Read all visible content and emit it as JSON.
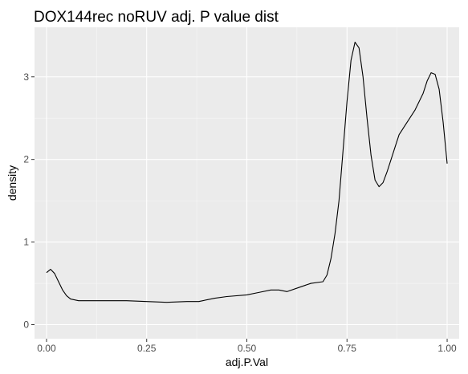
{
  "chart_data": {
    "type": "line",
    "title": "DOX144rec noRUV adj. P value dist",
    "xlabel": "adj.P.Val",
    "ylabel": "density",
    "xlim": [
      -0.03,
      1.03
    ],
    "ylim": [
      -0.17,
      3.6
    ],
    "x_ticks": [
      0,
      0.25,
      0.5,
      0.75,
      1.0
    ],
    "x_tick_labels": [
      "0.00",
      "0.25",
      "0.50",
      "0.75",
      "1.00"
    ],
    "y_ticks": [
      0,
      1,
      2,
      3
    ],
    "y_tick_labels": [
      "0",
      "1",
      "2",
      "3"
    ],
    "grid": true,
    "background": "#ebebeb",
    "grid_color": "#ffffff",
    "line_color": "#000000",
    "series": [
      {
        "x": [
          0.0,
          0.01,
          0.02,
          0.03,
          0.04,
          0.05,
          0.06,
          0.08,
          0.1,
          0.15,
          0.2,
          0.25,
          0.3,
          0.35,
          0.38,
          0.42,
          0.45,
          0.5,
          0.53,
          0.56,
          0.58,
          0.6,
          0.63,
          0.66,
          0.69,
          0.7,
          0.71,
          0.72,
          0.73,
          0.74,
          0.75,
          0.76,
          0.77,
          0.78,
          0.79,
          0.8,
          0.81,
          0.82,
          0.83,
          0.84,
          0.85,
          0.86,
          0.87,
          0.88,
          0.9,
          0.92,
          0.94,
          0.95,
          0.96,
          0.97,
          0.98,
          0.99,
          1.0
        ],
        "y": [
          0.63,
          0.67,
          0.62,
          0.52,
          0.42,
          0.35,
          0.31,
          0.29,
          0.29,
          0.29,
          0.29,
          0.28,
          0.27,
          0.28,
          0.28,
          0.32,
          0.34,
          0.36,
          0.39,
          0.42,
          0.42,
          0.4,
          0.45,
          0.5,
          0.52,
          0.6,
          0.8,
          1.1,
          1.5,
          2.1,
          2.7,
          3.2,
          3.42,
          3.35,
          3.0,
          2.5,
          2.05,
          1.75,
          1.67,
          1.72,
          1.85,
          2.0,
          2.15,
          2.3,
          2.45,
          2.6,
          2.8,
          2.95,
          3.05,
          3.03,
          2.85,
          2.45,
          1.95
        ]
      }
    ]
  }
}
